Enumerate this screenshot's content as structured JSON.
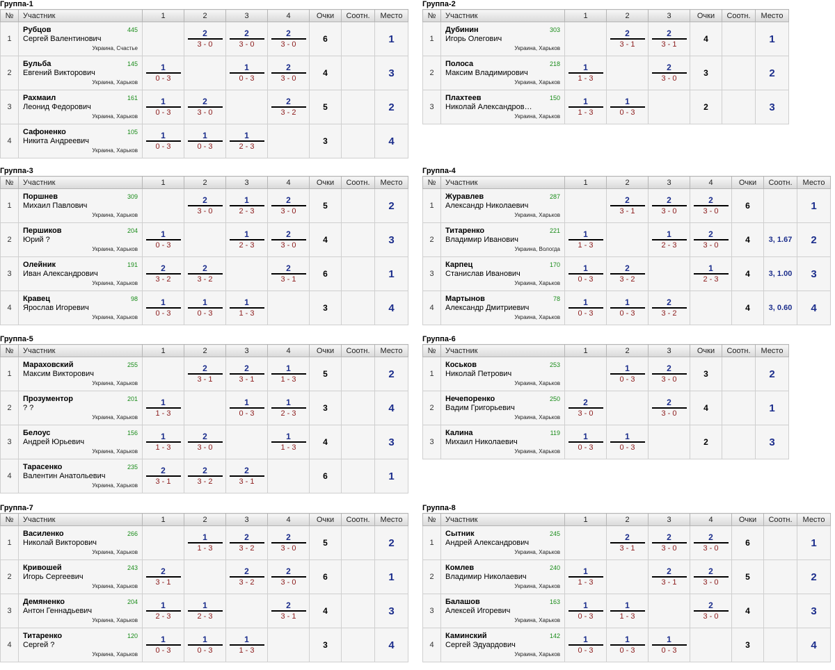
{
  "headers": {
    "num": "№",
    "participant": "Участник",
    "points": "Очки",
    "ratio": "Соотн.",
    "place": "Место"
  },
  "groups": [
    {
      "title": "Группа-1",
      "size": 4,
      "rows": [
        {
          "n": "1",
          "surname": "Рубцов",
          "name": "Сергей Валентинович",
          "rating": "445",
          "city": "Украина, Счастье",
          "results": [
            "",
            {
              "w": "2",
              "s": "3 - 0"
            },
            {
              "w": "2",
              "s": "3 - 0"
            },
            {
              "w": "2",
              "s": "3 - 0"
            }
          ],
          "points": "6",
          "ratio": "",
          "place": "1"
        },
        {
          "n": "2",
          "surname": "Бульба",
          "name": "Евгений Викторович",
          "rating": "145",
          "city": "Украина, Харьков",
          "results": [
            {
              "w": "1",
              "s": "0 - 3"
            },
            "",
            {
              "w": "1",
              "s": "0 - 3"
            },
            {
              "w": "2",
              "s": "3 - 0"
            }
          ],
          "points": "4",
          "ratio": "",
          "place": "3"
        },
        {
          "n": "3",
          "surname": "Рахмаил",
          "name": "Леонид Федорович",
          "rating": "161",
          "city": "Украина, Харьков",
          "results": [
            {
              "w": "1",
              "s": "0 - 3"
            },
            {
              "w": "2",
              "s": "3 - 0"
            },
            "",
            {
              "w": "2",
              "s": "3 - 2"
            }
          ],
          "points": "5",
          "ratio": "",
          "place": "2"
        },
        {
          "n": "4",
          "surname": "Сафоненко",
          "name": "Никита Андреевич",
          "rating": "105",
          "city": "Украина, Харьков",
          "results": [
            {
              "w": "1",
              "s": "0 - 3"
            },
            {
              "w": "1",
              "s": "0 - 3"
            },
            {
              "w": "1",
              "s": "2 - 3"
            },
            ""
          ],
          "points": "3",
          "ratio": "",
          "place": "4"
        }
      ]
    },
    {
      "title": "Группа-2",
      "size": 3,
      "rows": [
        {
          "n": "1",
          "surname": "Дубинин",
          "name": "Игорь Олегович",
          "rating": "303",
          "city": "Украина, Харьков",
          "results": [
            "",
            {
              "w": "2",
              "s": "3 - 1"
            },
            {
              "w": "2",
              "s": "3 - 1"
            }
          ],
          "points": "4",
          "ratio": "",
          "place": "1"
        },
        {
          "n": "2",
          "surname": "Полоса",
          "name": "Максим Владимирович",
          "rating": "218",
          "city": "Украина, Харьков",
          "results": [
            {
              "w": "1",
              "s": "1 - 3"
            },
            "",
            {
              "w": "2",
              "s": "3 - 0"
            }
          ],
          "points": "3",
          "ratio": "",
          "place": "2"
        },
        {
          "n": "3",
          "surname": "Плахтеев",
          "name": "Николай Александров…",
          "rating": "150",
          "city": "Украина, Харьков",
          "results": [
            {
              "w": "1",
              "s": "1 - 3"
            },
            {
              "w": "1",
              "s": "0 - 3"
            },
            ""
          ],
          "points": "2",
          "ratio": "",
          "place": "3"
        }
      ]
    },
    {
      "title": "Группа-3",
      "size": 4,
      "rows": [
        {
          "n": "1",
          "surname": "Поршнев",
          "name": "Михаил Павлович",
          "rating": "309",
          "city": "Украина, Харьков",
          "results": [
            "",
            {
              "w": "2",
              "s": "3 - 0"
            },
            {
              "w": "1",
              "s": "2 - 3"
            },
            {
              "w": "2",
              "s": "3 - 0"
            }
          ],
          "points": "5",
          "ratio": "",
          "place": "2"
        },
        {
          "n": "2",
          "surname": "Першиков",
          "name": "Юрий ?",
          "rating": "204",
          "city": "Украина, Харьков",
          "results": [
            {
              "w": "1",
              "s": "0 - 3"
            },
            "",
            {
              "w": "1",
              "s": "2 - 3"
            },
            {
              "w": "2",
              "s": "3 - 0"
            }
          ],
          "points": "4",
          "ratio": "",
          "place": "3"
        },
        {
          "n": "3",
          "surname": "Олейник",
          "name": "Иван Александрович",
          "rating": "191",
          "city": "Украина, Харьков",
          "results": [
            {
              "w": "2",
              "s": "3 - 2"
            },
            {
              "w": "2",
              "s": "3 - 2"
            },
            "",
            {
              "w": "2",
              "s": "3 - 1"
            }
          ],
          "points": "6",
          "ratio": "",
          "place": "1"
        },
        {
          "n": "4",
          "surname": "Кравец",
          "name": "Ярослав Игоревич",
          "rating": "98",
          "city": "Украина, Харьков",
          "results": [
            {
              "w": "1",
              "s": "0 - 3"
            },
            {
              "w": "1",
              "s": "0 - 3"
            },
            {
              "w": "1",
              "s": "1 - 3"
            },
            ""
          ],
          "points": "3",
          "ratio": "",
          "place": "4"
        }
      ]
    },
    {
      "title": "Группа-4",
      "size": 4,
      "rows": [
        {
          "n": "1",
          "surname": "Журавлев",
          "name": "Александр Николаевич",
          "rating": "287",
          "city": "Украина, Харьков",
          "results": [
            "",
            {
              "w": "2",
              "s": "3 - 1"
            },
            {
              "w": "2",
              "s": "3 - 0"
            },
            {
              "w": "2",
              "s": "3 - 0"
            }
          ],
          "points": "6",
          "ratio": "",
          "place": "1"
        },
        {
          "n": "2",
          "surname": "Титаренко",
          "name": "Владимир Иванович",
          "rating": "221",
          "city": "Украина, Вологда",
          "results": [
            {
              "w": "1",
              "s": "1 - 3"
            },
            "",
            {
              "w": "1",
              "s": "2 - 3"
            },
            {
              "w": "2",
              "s": "3 - 0"
            }
          ],
          "points": "4",
          "ratio": "3, 1.67",
          "place": "2"
        },
        {
          "n": "3",
          "surname": "Карпец",
          "name": "Станислав Иванович",
          "rating": "170",
          "city": "Украина, Харьков",
          "results": [
            {
              "w": "1",
              "s": "0 - 3"
            },
            {
              "w": "2",
              "s": "3 - 2"
            },
            "",
            {
              "w": "1",
              "s": "2 - 3"
            }
          ],
          "points": "4",
          "ratio": "3, 1.00",
          "place": "3"
        },
        {
          "n": "4",
          "surname": "Мартынов",
          "name": "Александр Дмитриевич",
          "rating": "78",
          "city": "Украина, Харьков",
          "results": [
            {
              "w": "1",
              "s": "0 - 3"
            },
            {
              "w": "1",
              "s": "0 - 3"
            },
            {
              "w": "2",
              "s": "3 - 2"
            },
            ""
          ],
          "points": "4",
          "ratio": "3, 0.60",
          "place": "4"
        }
      ]
    },
    {
      "title": "Группа-5",
      "size": 4,
      "rows": [
        {
          "n": "1",
          "surname": "Мараховский",
          "name": "Максим Викторович",
          "rating": "255",
          "city": "Украина, Харьков",
          "results": [
            "",
            {
              "w": "2",
              "s": "3 - 1"
            },
            {
              "w": "2",
              "s": "3 - 1"
            },
            {
              "w": "1",
              "s": "1 - 3"
            }
          ],
          "points": "5",
          "ratio": "",
          "place": "2"
        },
        {
          "n": "2",
          "surname": "Прозументор",
          "name": "? ?",
          "rating": "201",
          "city": "Украина, Харьков",
          "results": [
            {
              "w": "1",
              "s": "1 - 3"
            },
            "",
            {
              "w": "1",
              "s": "0 - 3"
            },
            {
              "w": "1",
              "s": "2 - 3"
            }
          ],
          "points": "3",
          "ratio": "",
          "place": "4"
        },
        {
          "n": "3",
          "surname": "Белоус",
          "name": "Андрей Юрьевич",
          "rating": "156",
          "city": "Украина, Харьков",
          "results": [
            {
              "w": "1",
              "s": "1 - 3"
            },
            {
              "w": "2",
              "s": "3 - 0"
            },
            "",
            {
              "w": "1",
              "s": "1 - 3"
            }
          ],
          "points": "4",
          "ratio": "",
          "place": "3"
        },
        {
          "n": "4",
          "surname": "Тарасенко",
          "name": "Валентин Анатольевич",
          "rating": "235",
          "city": "Украина, Харьков",
          "results": [
            {
              "w": "2",
              "s": "3 - 1"
            },
            {
              "w": "2",
              "s": "3 - 2"
            },
            {
              "w": "2",
              "s": "3 - 1"
            },
            ""
          ],
          "points": "6",
          "ratio": "",
          "place": "1"
        }
      ]
    },
    {
      "title": "Группа-6",
      "size": 3,
      "rows": [
        {
          "n": "1",
          "surname": "Коськов",
          "name": "Николай Петрович",
          "rating": "253",
          "city": "Украина, Харьков",
          "results": [
            "",
            {
              "w": "1",
              "s": "0 - 3"
            },
            {
              "w": "2",
              "s": "3 - 0"
            }
          ],
          "points": "3",
          "ratio": "",
          "place": "2"
        },
        {
          "n": "2",
          "surname": "Нечепоренко",
          "name": "Вадим Григорьевич",
          "rating": "250",
          "city": "Украина, Харьков",
          "results": [
            {
              "w": "2",
              "s": "3 - 0"
            },
            "",
            {
              "w": "2",
              "s": "3 - 0"
            }
          ],
          "points": "4",
          "ratio": "",
          "place": "1"
        },
        {
          "n": "3",
          "surname": "Калина",
          "name": "Михаил Николаевич",
          "rating": "119",
          "city": "Украина, Харьков",
          "results": [
            {
              "w": "1",
              "s": "0 - 3"
            },
            {
              "w": "1",
              "s": "0 - 3"
            },
            ""
          ],
          "points": "2",
          "ratio": "",
          "place": "3"
        }
      ]
    },
    {
      "title": "Группа-7",
      "size": 4,
      "rows": [
        {
          "n": "1",
          "surname": "Василенко",
          "name": "Николай Викторович",
          "rating": "266",
          "city": "Украина, Харьков",
          "results": [
            "",
            {
              "w": "1",
              "s": "1 - 3"
            },
            {
              "w": "2",
              "s": "3 - 2"
            },
            {
              "w": "2",
              "s": "3 - 0"
            }
          ],
          "points": "5",
          "ratio": "",
          "place": "2"
        },
        {
          "n": "2",
          "surname": "Кривошей",
          "name": "Игорь Сергеевич",
          "rating": "243",
          "city": "Украина, Харьков",
          "results": [
            {
              "w": "2",
              "s": "3 - 1"
            },
            "",
            {
              "w": "2",
              "s": "3 - 2"
            },
            {
              "w": "2",
              "s": "3 - 0"
            }
          ],
          "points": "6",
          "ratio": "",
          "place": "1"
        },
        {
          "n": "3",
          "surname": "Демяненко",
          "name": "Антон Геннадьевич",
          "rating": "204",
          "city": "Украина, Харьков",
          "results": [
            {
              "w": "1",
              "s": "2 - 3"
            },
            {
              "w": "1",
              "s": "2 - 3"
            },
            "",
            {
              "w": "2",
              "s": "3 - 1"
            }
          ],
          "points": "4",
          "ratio": "",
          "place": "3"
        },
        {
          "n": "4",
          "surname": "Титаренко",
          "name": "Сергей ?",
          "rating": "120",
          "city": "Украина, Харьков",
          "results": [
            {
              "w": "1",
              "s": "0 - 3"
            },
            {
              "w": "1",
              "s": "0 - 3"
            },
            {
              "w": "1",
              "s": "1 - 3"
            },
            ""
          ],
          "points": "3",
          "ratio": "",
          "place": "4"
        }
      ]
    },
    {
      "title": "Группа-8",
      "size": 4,
      "rows": [
        {
          "n": "1",
          "surname": "Сытник",
          "name": "Андрей Александрович",
          "rating": "245",
          "city": "Украина, Харьков",
          "results": [
            "",
            {
              "w": "2",
              "s": "3 - 1"
            },
            {
              "w": "2",
              "s": "3 - 0"
            },
            {
              "w": "2",
              "s": "3 - 0"
            }
          ],
          "points": "6",
          "ratio": "",
          "place": "1"
        },
        {
          "n": "2",
          "surname": "Комлев",
          "name": "Владимир Николаевич",
          "rating": "240",
          "city": "Украина, Харьков",
          "results": [
            {
              "w": "1",
              "s": "1 - 3"
            },
            "",
            {
              "w": "2",
              "s": "3 - 1"
            },
            {
              "w": "2",
              "s": "3 - 0"
            }
          ],
          "points": "5",
          "ratio": "",
          "place": "2"
        },
        {
          "n": "3",
          "surname": "Балашов",
          "name": "Алексей Игоревич",
          "rating": "163",
          "city": "Украина, Харьков",
          "results": [
            {
              "w": "1",
              "s": "0 - 3"
            },
            {
              "w": "1",
              "s": "1 - 3"
            },
            "",
            {
              "w": "2",
              "s": "3 - 0"
            }
          ],
          "points": "4",
          "ratio": "",
          "place": "3"
        },
        {
          "n": "4",
          "surname": "Каминский",
          "name": "Сергей Эдуардович",
          "rating": "142",
          "city": "Украина, Харьков",
          "results": [
            {
              "w": "1",
              "s": "0 - 3"
            },
            {
              "w": "1",
              "s": "0 - 3"
            },
            {
              "w": "1",
              "s": "0 - 3"
            },
            ""
          ],
          "points": "3",
          "ratio": "",
          "place": "4"
        }
      ]
    }
  ]
}
